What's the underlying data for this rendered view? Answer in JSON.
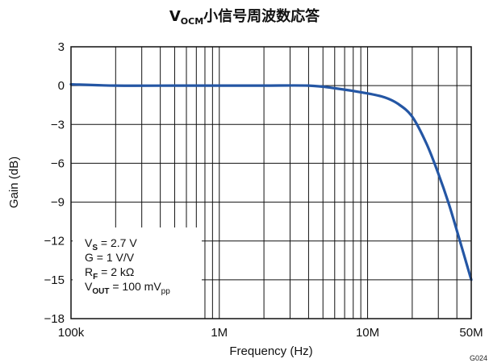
{
  "chart_data": {
    "type": "line",
    "title": {
      "main": "V",
      "sub": "OCM",
      "rest": "小信号周波数応答"
    },
    "xlabel": "Frequency (Hz)",
    "ylabel": "Gain (dB)",
    "xscale": "log",
    "xlim": [
      100000,
      50000000
    ],
    "ylim": [
      -18,
      3
    ],
    "xticks": [
      100000,
      1000000,
      10000000,
      50000000
    ],
    "xtick_labels": [
      "100k",
      "1M",
      "10M",
      "50M"
    ],
    "yticks": [
      3,
      0,
      -3,
      -6,
      -9,
      -12,
      -15,
      -18
    ],
    "ytick_labels": [
      "3",
      "0",
      "−3",
      "−6",
      "−9",
      "−12",
      "−15",
      "−18"
    ],
    "grid": true,
    "series": [
      {
        "color": "#2456a4",
        "x": [
          100000,
          200000,
          500000,
          1000000,
          2000000,
          4000000,
          6000000,
          10000000,
          13000000,
          16000000,
          20000000,
          25000000,
          30000000,
          35000000,
          40000000,
          45000000,
          50000000
        ],
        "y": [
          0.1,
          0.0,
          0.0,
          0.0,
          0.0,
          0.0,
          -0.2,
          -0.6,
          -0.9,
          -1.4,
          -2.4,
          -4.5,
          -6.8,
          -9.0,
          -11.2,
          -13.2,
          -15.0
        ]
      }
    ],
    "annotation": [
      {
        "main": "V",
        "sub": "S",
        "sub_bold": true,
        "rest": " = 2.7 V",
        "sup": ""
      },
      {
        "main": "G = 1 V/V",
        "sub": "",
        "sub_bold": false,
        "rest": "",
        "sup": ""
      },
      {
        "main": "R",
        "sub": "F",
        "sub_bold": true,
        "rest": " = 2 kΩ",
        "sup": ""
      },
      {
        "main": "V",
        "sub": "OUT",
        "sub_bold": true,
        "rest": " = 100 mV",
        "sup": "pp"
      }
    ],
    "figure_code": "G024"
  }
}
